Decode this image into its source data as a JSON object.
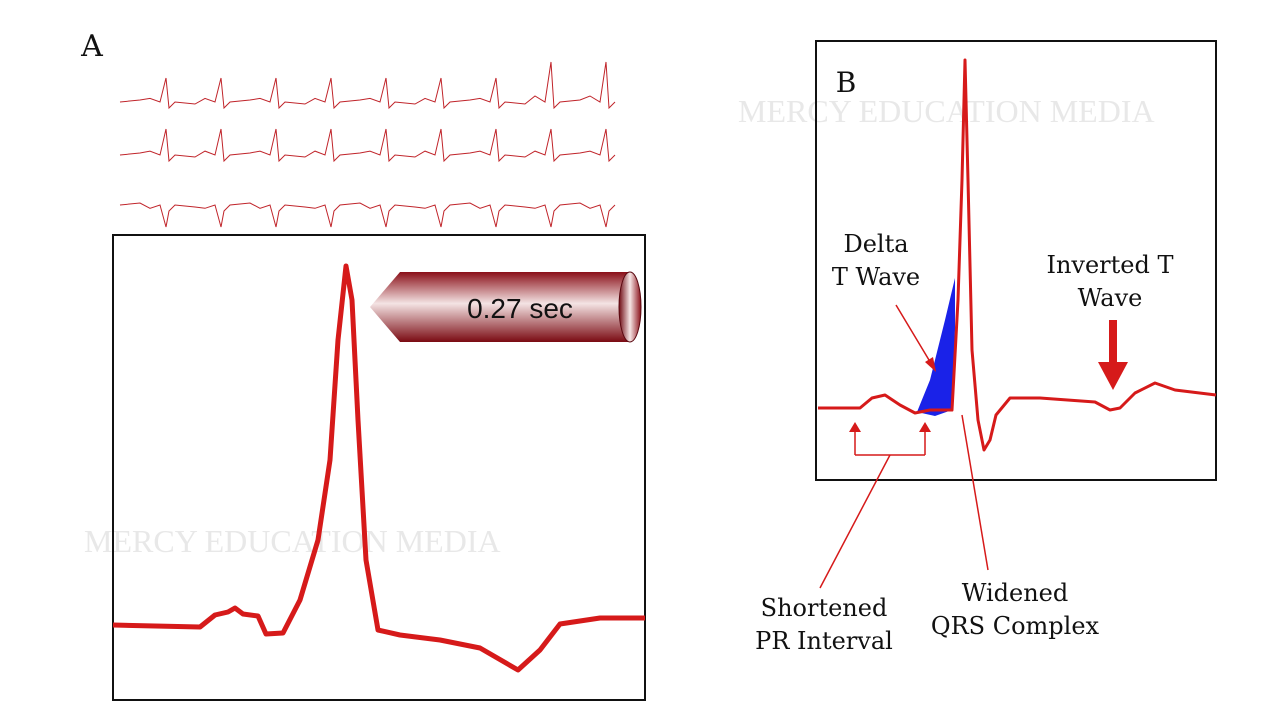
{
  "panel_a": {
    "label": "A",
    "duration": "0.27 sec",
    "watermark": "MERCY EDUCATION MEDIA"
  },
  "panel_b": {
    "label": "B",
    "watermark": "MERCY EDUCATION MEDIA",
    "annotations": [
      {
        "lines": [
          "Delta",
          "T Wave"
        ]
      },
      {
        "lines": [
          "Inverted T",
          "Wave"
        ]
      },
      {
        "lines": [
          "Shortened",
          "PR Interval"
        ]
      },
      {
        "lines": [
          "Widened",
          "QRS Complex"
        ]
      }
    ]
  }
}
